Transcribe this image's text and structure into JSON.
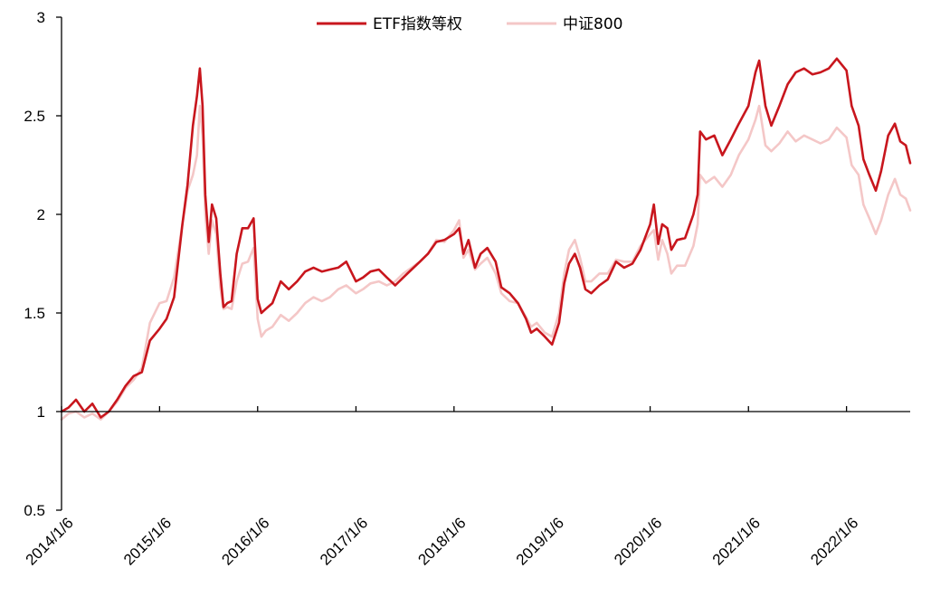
{
  "chart_data": {
    "type": "line",
    "title": "",
    "xlabel": "",
    "ylabel": "",
    "ylim": [
      0.5,
      3
    ],
    "grid": false,
    "legend_position": "top-center",
    "y_ticks": [
      "0.5",
      "1",
      "1.5",
      "2",
      "2.5",
      "3"
    ],
    "x_ticks": [
      "2014/1/6",
      "2015/1/6",
      "2016/1/6",
      "2017/1/6",
      "2018/1/6",
      "2019/1/6",
      "2020/1/6",
      "2021/1/6",
      "2022/1/6"
    ],
    "x_domain": [
      "2014/1/6",
      "2022/8/31"
    ],
    "series": [
      {
        "name": "ETF指数等权",
        "color": "#c8161d",
        "points": [
          [
            "2014/1/6",
            1.0
          ],
          [
            "2014/2/1",
            1.02
          ],
          [
            "2014/3/1",
            1.06
          ],
          [
            "2014/4/1",
            1.0
          ],
          [
            "2014/5/1",
            1.04
          ],
          [
            "2014/6/1",
            0.97
          ],
          [
            "2014/7/1",
            1.0
          ],
          [
            "2014/8/1",
            1.06
          ],
          [
            "2014/9/1",
            1.13
          ],
          [
            "2014/10/1",
            1.18
          ],
          [
            "2014/11/1",
            1.2
          ],
          [
            "2014/12/1",
            1.36
          ],
          [
            "2015/1/6",
            1.42
          ],
          [
            "2015/2/1",
            1.47
          ],
          [
            "2015/3/1",
            1.58
          ],
          [
            "2015/4/1",
            1.95
          ],
          [
            "2015/4/20",
            2.15
          ],
          [
            "2015/5/10",
            2.45
          ],
          [
            "2015/5/25",
            2.6
          ],
          [
            "2015/6/5",
            2.74
          ],
          [
            "2015/6/15",
            2.55
          ],
          [
            "2015/6/25",
            2.1
          ],
          [
            "2015/7/8",
            1.86
          ],
          [
            "2015/7/20",
            2.05
          ],
          [
            "2015/8/5",
            1.98
          ],
          [
            "2015/8/20",
            1.7
          ],
          [
            "2015/9/1",
            1.53
          ],
          [
            "2015/9/15",
            1.55
          ],
          [
            "2015/10/1",
            1.56
          ],
          [
            "2015/10/20",
            1.8
          ],
          [
            "2015/11/10",
            1.93
          ],
          [
            "2015/12/1",
            1.93
          ],
          [
            "2015/12/22",
            1.98
          ],
          [
            "2016/1/6",
            1.57
          ],
          [
            "2016/1/20",
            1.5
          ],
          [
            "2016/2/5",
            1.52
          ],
          [
            "2016/3/1",
            1.55
          ],
          [
            "2016/4/1",
            1.66
          ],
          [
            "2016/5/1",
            1.62
          ],
          [
            "2016/6/1",
            1.66
          ],
          [
            "2016/7/1",
            1.71
          ],
          [
            "2016/8/1",
            1.73
          ],
          [
            "2016/9/1",
            1.71
          ],
          [
            "2016/10/1",
            1.72
          ],
          [
            "2016/11/1",
            1.73
          ],
          [
            "2016/12/1",
            1.76
          ],
          [
            "2017/1/6",
            1.66
          ],
          [
            "2017/2/1",
            1.68
          ],
          [
            "2017/3/1",
            1.71
          ],
          [
            "2017/4/1",
            1.72
          ],
          [
            "2017/5/1",
            1.68
          ],
          [
            "2017/6/1",
            1.64
          ],
          [
            "2017/7/1",
            1.68
          ],
          [
            "2017/8/1",
            1.72
          ],
          [
            "2017/9/1",
            1.76
          ],
          [
            "2017/10/1",
            1.8
          ],
          [
            "2017/11/1",
            1.86
          ],
          [
            "2017/12/1",
            1.87
          ],
          [
            "2018/1/6",
            1.9
          ],
          [
            "2018/1/25",
            1.93
          ],
          [
            "2018/2/10",
            1.8
          ],
          [
            "2018/3/1",
            1.87
          ],
          [
            "2018/3/25",
            1.73
          ],
          [
            "2018/4/15",
            1.8
          ],
          [
            "2018/5/10",
            1.83
          ],
          [
            "2018/6/10",
            1.76
          ],
          [
            "2018/7/1",
            1.63
          ],
          [
            "2018/8/1",
            1.6
          ],
          [
            "2018/9/1",
            1.55
          ],
          [
            "2018/10/1",
            1.47
          ],
          [
            "2018/10/20",
            1.4
          ],
          [
            "2018/11/10",
            1.42
          ],
          [
            "2018/12/10",
            1.38
          ],
          [
            "2019/1/6",
            1.34
          ],
          [
            "2019/2/1",
            1.45
          ],
          [
            "2019/2/20",
            1.65
          ],
          [
            "2019/3/10",
            1.75
          ],
          [
            "2019/4/1",
            1.8
          ],
          [
            "2019/4/20",
            1.73
          ],
          [
            "2019/5/10",
            1.62
          ],
          [
            "2019/6/1",
            1.6
          ],
          [
            "2019/7/1",
            1.64
          ],
          [
            "2019/8/1",
            1.67
          ],
          [
            "2019/9/1",
            1.76
          ],
          [
            "2019/10/1",
            1.73
          ],
          [
            "2019/11/1",
            1.75
          ],
          [
            "2019/12/1",
            1.82
          ],
          [
            "2020/1/6",
            1.95
          ],
          [
            "2020/1/20",
            2.05
          ],
          [
            "2020/2/5",
            1.85
          ],
          [
            "2020/2/20",
            1.95
          ],
          [
            "2020/3/10",
            1.93
          ],
          [
            "2020/3/25",
            1.82
          ],
          [
            "2020/4/15",
            1.87
          ],
          [
            "2020/5/15",
            1.88
          ],
          [
            "2020/6/15",
            2.0
          ],
          [
            "2020/7/1",
            2.1
          ],
          [
            "2020/7/10",
            2.42
          ],
          [
            "2020/8/1",
            2.38
          ],
          [
            "2020/9/1",
            2.4
          ],
          [
            "2020/10/1",
            2.3
          ],
          [
            "2020/11/1",
            2.38
          ],
          [
            "2020/12/1",
            2.46
          ],
          [
            "2021/1/6",
            2.55
          ],
          [
            "2021/2/1",
            2.72
          ],
          [
            "2021/2/15",
            2.78
          ],
          [
            "2021/3/10",
            2.55
          ],
          [
            "2021/4/1",
            2.45
          ],
          [
            "2021/5/1",
            2.55
          ],
          [
            "2021/6/1",
            2.66
          ],
          [
            "2021/7/1",
            2.72
          ],
          [
            "2021/8/1",
            2.74
          ],
          [
            "2021/9/1",
            2.71
          ],
          [
            "2021/10/1",
            2.72
          ],
          [
            "2021/11/1",
            2.74
          ],
          [
            "2021/12/1",
            2.79
          ],
          [
            "2022/1/6",
            2.73
          ],
          [
            "2022/1/25",
            2.55
          ],
          [
            "2022/2/20",
            2.45
          ],
          [
            "2022/3/10",
            2.28
          ],
          [
            "2022/4/1",
            2.2
          ],
          [
            "2022/4/25",
            2.12
          ],
          [
            "2022/5/15",
            2.22
          ],
          [
            "2022/6/10",
            2.4
          ],
          [
            "2022/7/5",
            2.46
          ],
          [
            "2022/7/25",
            2.37
          ],
          [
            "2022/8/15",
            2.35
          ],
          [
            "2022/8/31",
            2.26
          ]
        ]
      },
      {
        "name": "中证800",
        "color": "#f4c7c7",
        "points": [
          [
            "2014/1/6",
            0.96
          ],
          [
            "2014/2/1",
            0.99
          ],
          [
            "2014/3/1",
            1.0
          ],
          [
            "2014/4/1",
            0.97
          ],
          [
            "2014/5/1",
            0.99
          ],
          [
            "2014/6/1",
            0.96
          ],
          [
            "2014/7/1",
            1.0
          ],
          [
            "2014/8/1",
            1.05
          ],
          [
            "2014/9/1",
            1.12
          ],
          [
            "2014/10/1",
            1.16
          ],
          [
            "2014/11/1",
            1.22
          ],
          [
            "2014/12/1",
            1.45
          ],
          [
            "2015/1/6",
            1.55
          ],
          [
            "2015/2/1",
            1.56
          ],
          [
            "2015/3/1",
            1.68
          ],
          [
            "2015/4/1",
            1.95
          ],
          [
            "2015/4/20",
            2.12
          ],
          [
            "2015/5/10",
            2.2
          ],
          [
            "2015/5/25",
            2.3
          ],
          [
            "2015/6/5",
            2.55
          ],
          [
            "2015/6/15",
            2.4
          ],
          [
            "2015/6/25",
            2.0
          ],
          [
            "2015/7/8",
            1.8
          ],
          [
            "2015/7/20",
            1.97
          ],
          [
            "2015/8/5",
            1.9
          ],
          [
            "2015/8/20",
            1.63
          ],
          [
            "2015/9/1",
            1.52
          ],
          [
            "2015/9/15",
            1.53
          ],
          [
            "2015/10/1",
            1.52
          ],
          [
            "2015/10/20",
            1.66
          ],
          [
            "2015/11/10",
            1.75
          ],
          [
            "2015/12/1",
            1.76
          ],
          [
            "2015/12/22",
            1.83
          ],
          [
            "2016/1/6",
            1.47
          ],
          [
            "2016/1/20",
            1.38
          ],
          [
            "2016/2/5",
            1.41
          ],
          [
            "2016/3/1",
            1.43
          ],
          [
            "2016/4/1",
            1.49
          ],
          [
            "2016/5/1",
            1.46
          ],
          [
            "2016/6/1",
            1.5
          ],
          [
            "2016/7/1",
            1.55
          ],
          [
            "2016/8/1",
            1.58
          ],
          [
            "2016/9/1",
            1.56
          ],
          [
            "2016/10/1",
            1.58
          ],
          [
            "2016/11/1",
            1.62
          ],
          [
            "2016/12/1",
            1.64
          ],
          [
            "2017/1/6",
            1.6
          ],
          [
            "2017/2/1",
            1.62
          ],
          [
            "2017/3/1",
            1.65
          ],
          [
            "2017/4/1",
            1.66
          ],
          [
            "2017/5/1",
            1.64
          ],
          [
            "2017/6/1",
            1.66
          ],
          [
            "2017/7/1",
            1.7
          ],
          [
            "2017/8/1",
            1.73
          ],
          [
            "2017/9/1",
            1.76
          ],
          [
            "2017/10/1",
            1.8
          ],
          [
            "2017/11/1",
            1.87
          ],
          [
            "2017/12/1",
            1.86
          ],
          [
            "2018/1/6",
            1.92
          ],
          [
            "2018/1/25",
            1.97
          ],
          [
            "2018/2/10",
            1.78
          ],
          [
            "2018/3/1",
            1.82
          ],
          [
            "2018/3/25",
            1.72
          ],
          [
            "2018/4/15",
            1.75
          ],
          [
            "2018/5/10",
            1.78
          ],
          [
            "2018/6/10",
            1.7
          ],
          [
            "2018/7/1",
            1.6
          ],
          [
            "2018/8/1",
            1.56
          ],
          [
            "2018/9/1",
            1.55
          ],
          [
            "2018/10/1",
            1.48
          ],
          [
            "2018/10/20",
            1.43
          ],
          [
            "2018/11/10",
            1.45
          ],
          [
            "2018/12/10",
            1.4
          ],
          [
            "2019/1/6",
            1.38
          ],
          [
            "2019/2/1",
            1.5
          ],
          [
            "2019/2/20",
            1.7
          ],
          [
            "2019/3/10",
            1.82
          ],
          [
            "2019/4/1",
            1.87
          ],
          [
            "2019/4/20",
            1.78
          ],
          [
            "2019/5/10",
            1.66
          ],
          [
            "2019/6/1",
            1.66
          ],
          [
            "2019/7/1",
            1.7
          ],
          [
            "2019/8/1",
            1.7
          ],
          [
            "2019/9/1",
            1.77
          ],
          [
            "2019/10/1",
            1.76
          ],
          [
            "2019/11/1",
            1.76
          ],
          [
            "2019/12/1",
            1.84
          ],
          [
            "2020/1/6",
            1.9
          ],
          [
            "2020/1/20",
            1.92
          ],
          [
            "2020/2/5",
            1.77
          ],
          [
            "2020/2/20",
            1.87
          ],
          [
            "2020/3/10",
            1.8
          ],
          [
            "2020/3/25",
            1.7
          ],
          [
            "2020/4/15",
            1.74
          ],
          [
            "2020/5/15",
            1.74
          ],
          [
            "2020/6/15",
            1.84
          ],
          [
            "2020/7/1",
            1.95
          ],
          [
            "2020/7/10",
            2.2
          ],
          [
            "2020/8/1",
            2.16
          ],
          [
            "2020/9/1",
            2.19
          ],
          [
            "2020/10/1",
            2.14
          ],
          [
            "2020/11/1",
            2.2
          ],
          [
            "2020/12/1",
            2.3
          ],
          [
            "2021/1/6",
            2.38
          ],
          [
            "2021/2/1",
            2.48
          ],
          [
            "2021/2/15",
            2.55
          ],
          [
            "2021/3/10",
            2.35
          ],
          [
            "2021/4/1",
            2.32
          ],
          [
            "2021/5/1",
            2.36
          ],
          [
            "2021/6/1",
            2.42
          ],
          [
            "2021/7/1",
            2.37
          ],
          [
            "2021/8/1",
            2.4
          ],
          [
            "2021/9/1",
            2.38
          ],
          [
            "2021/10/1",
            2.36
          ],
          [
            "2021/11/1",
            2.38
          ],
          [
            "2021/12/1",
            2.44
          ],
          [
            "2022/1/6",
            2.39
          ],
          [
            "2022/1/25",
            2.25
          ],
          [
            "2022/2/20",
            2.2
          ],
          [
            "2022/3/10",
            2.05
          ],
          [
            "2022/4/1",
            1.98
          ],
          [
            "2022/4/25",
            1.9
          ],
          [
            "2022/5/15",
            1.97
          ],
          [
            "2022/6/10",
            2.1
          ],
          [
            "2022/7/5",
            2.18
          ],
          [
            "2022/7/25",
            2.1
          ],
          [
            "2022/8/15",
            2.08
          ],
          [
            "2022/8/31",
            2.02
          ]
        ]
      }
    ]
  }
}
